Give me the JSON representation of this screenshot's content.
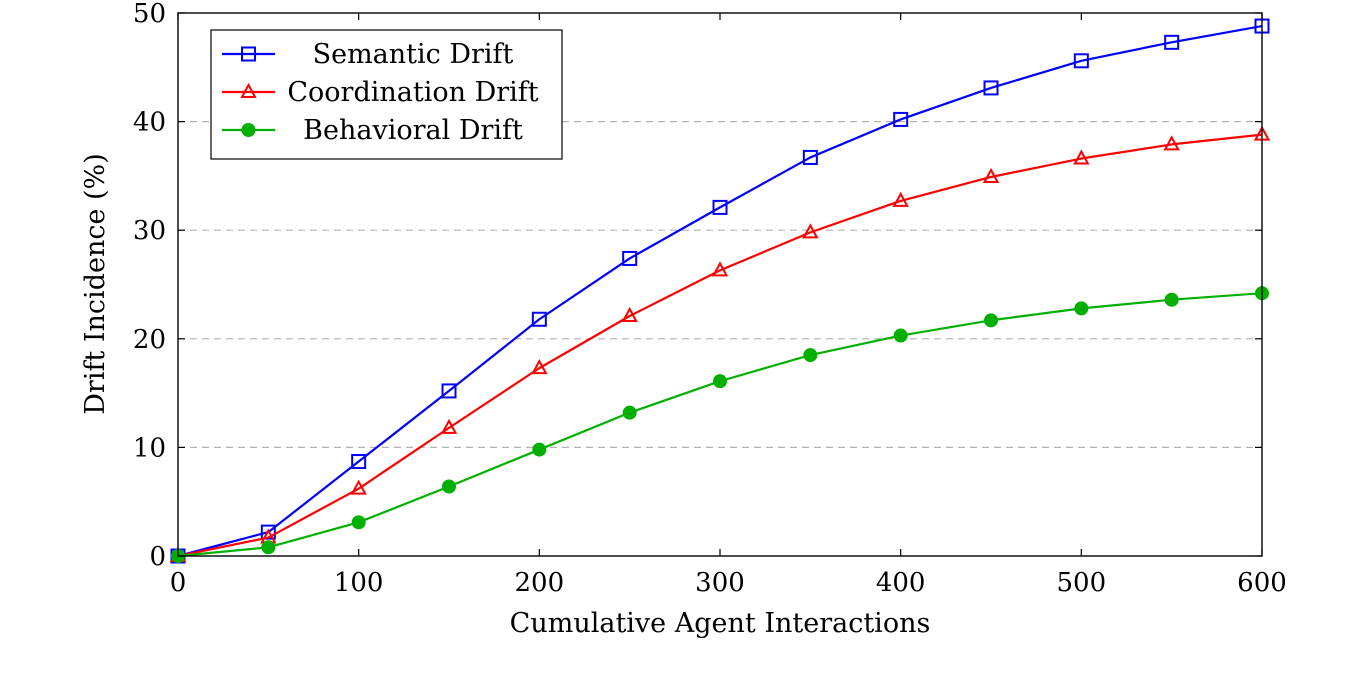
{
  "chart_data": {
    "type": "line",
    "title": "",
    "xlabel": "Cumulative Agent Interactions",
    "ylabel": "Drift Incidence (%)",
    "xlim": [
      0,
      600
    ],
    "ylim": [
      0,
      50
    ],
    "xticks": [
      0,
      100,
      200,
      300,
      400,
      500,
      600
    ],
    "yticks": [
      0,
      10,
      20,
      30,
      40,
      50
    ],
    "grid": "horizontal-dashed",
    "legend_position": "top-left",
    "x": [
      0,
      50,
      100,
      150,
      200,
      250,
      300,
      350,
      400,
      450,
      500,
      550,
      600
    ],
    "series": [
      {
        "name": "Semantic Drift",
        "color": "#0000ff",
        "marker": "square-open",
        "values": [
          0,
          2.2,
          8.7,
          15.2,
          21.8,
          27.4,
          32.1,
          36.7,
          40.2,
          43.1,
          45.6,
          47.3,
          48.8
        ]
      },
      {
        "name": "Coordination Drift",
        "color": "#ff0000",
        "marker": "triangle-open",
        "values": [
          0,
          1.7,
          6.2,
          11.8,
          17.3,
          22.1,
          26.3,
          29.8,
          32.7,
          34.9,
          36.6,
          37.9,
          38.8
        ]
      },
      {
        "name": "Behavioral Drift",
        "color": "#00b000",
        "marker": "circle-filled",
        "values": [
          0,
          0.8,
          3.1,
          6.4,
          9.8,
          13.2,
          16.1,
          18.5,
          20.3,
          21.7,
          22.8,
          23.6,
          24.2
        ]
      }
    ]
  }
}
